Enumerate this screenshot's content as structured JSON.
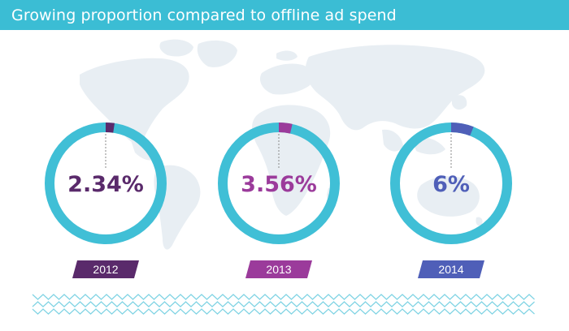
{
  "header": {
    "title": "Growing proportion compared to offline ad spend"
  },
  "colors": {
    "header": "#3bbdd4",
    "ring": "#40bfd6",
    "map": "#e8eef3",
    "wave": "#7fd3e3"
  },
  "chart_data": {
    "type": "pie",
    "title": "Growing proportion compared to offline ad spend",
    "series": [
      {
        "category": "2012",
        "value": 2.34,
        "label": "2.34%",
        "color": "#5a2a6b"
      },
      {
        "category": "2013",
        "value": 3.56,
        "label": "3.56%",
        "color": "#9b3b9b"
      },
      {
        "category": "2014",
        "value": 6,
        "label": "6%",
        "color": "#4f5fb8"
      }
    ],
    "unit": "%",
    "max": 100
  }
}
